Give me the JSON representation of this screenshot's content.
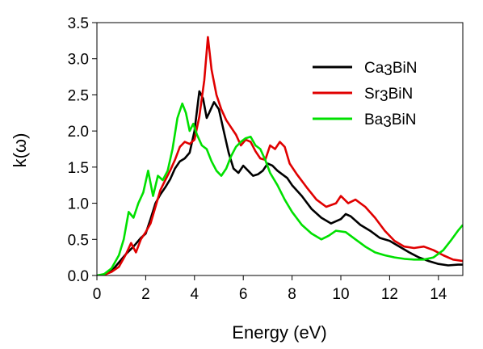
{
  "chart_data": {
    "type": "line",
    "title": "",
    "xlabel": "Energy (eV)",
    "ylabel": "k(ω)",
    "xlim": [
      0,
      15
    ],
    "ylim": [
      0,
      3.5
    ],
    "xticks": [
      0,
      2,
      4,
      6,
      8,
      10,
      12,
      14
    ],
    "yticks": [
      0.0,
      0.5,
      1.0,
      1.5,
      2.0,
      2.5,
      3.0,
      3.5
    ],
    "xtick_labels": [
      "0",
      "2",
      "4",
      "6",
      "8",
      "10",
      "12",
      "14"
    ],
    "ytick_labels": [
      "0.0",
      "0.5",
      "1.0",
      "1.5",
      "2.0",
      "2.5",
      "3.0",
      "3.5"
    ],
    "grid": false,
    "legend_position": "top-right",
    "series": [
      {
        "name": "Ca3BiN",
        "color": "#000000",
        "points": [
          [
            0,
            0
          ],
          [
            0.3,
            0.01
          ],
          [
            0.6,
            0.06
          ],
          [
            0.9,
            0.18
          ],
          [
            1.2,
            0.3
          ],
          [
            1.5,
            0.4
          ],
          [
            1.8,
            0.52
          ],
          [
            2.0,
            0.58
          ],
          [
            2.2,
            0.78
          ],
          [
            2.4,
            1.0
          ],
          [
            2.6,
            1.12
          ],
          [
            2.8,
            1.22
          ],
          [
            3.0,
            1.33
          ],
          [
            3.2,
            1.48
          ],
          [
            3.4,
            1.58
          ],
          [
            3.6,
            1.62
          ],
          [
            3.8,
            1.7
          ],
          [
            4.0,
            2.0
          ],
          [
            4.2,
            2.55
          ],
          [
            4.35,
            2.45
          ],
          [
            4.5,
            2.18
          ],
          [
            4.6,
            2.25
          ],
          [
            4.8,
            2.4
          ],
          [
            5.0,
            2.3
          ],
          [
            5.2,
            2.0
          ],
          [
            5.4,
            1.7
          ],
          [
            5.6,
            1.48
          ],
          [
            5.8,
            1.42
          ],
          [
            6.0,
            1.52
          ],
          [
            6.2,
            1.45
          ],
          [
            6.4,
            1.38
          ],
          [
            6.6,
            1.4
          ],
          [
            6.8,
            1.45
          ],
          [
            7.0,
            1.55
          ],
          [
            7.2,
            1.52
          ],
          [
            7.4,
            1.45
          ],
          [
            7.6,
            1.4
          ],
          [
            7.8,
            1.35
          ],
          [
            8.0,
            1.25
          ],
          [
            8.4,
            1.1
          ],
          [
            8.8,
            0.92
          ],
          [
            9.2,
            0.8
          ],
          [
            9.6,
            0.72
          ],
          [
            10.0,
            0.78
          ],
          [
            10.2,
            0.85
          ],
          [
            10.4,
            0.82
          ],
          [
            10.8,
            0.7
          ],
          [
            11.2,
            0.62
          ],
          [
            11.6,
            0.52
          ],
          [
            12.0,
            0.48
          ],
          [
            12.4,
            0.4
          ],
          [
            12.8,
            0.32
          ],
          [
            13.2,
            0.25
          ],
          [
            13.6,
            0.2
          ],
          [
            14.0,
            0.16
          ],
          [
            14.4,
            0.14
          ],
          [
            14.8,
            0.15
          ],
          [
            15.0,
            0.15
          ]
        ]
      },
      {
        "name": "Sr3BiN",
        "color": "#e00000",
        "points": [
          [
            0,
            0
          ],
          [
            0.3,
            0.01
          ],
          [
            0.6,
            0.05
          ],
          [
            0.9,
            0.12
          ],
          [
            1.2,
            0.3
          ],
          [
            1.4,
            0.45
          ],
          [
            1.6,
            0.32
          ],
          [
            1.8,
            0.5
          ],
          [
            2.0,
            0.6
          ],
          [
            2.2,
            0.72
          ],
          [
            2.4,
            0.95
          ],
          [
            2.6,
            1.18
          ],
          [
            2.8,
            1.32
          ],
          [
            3.0,
            1.45
          ],
          [
            3.2,
            1.6
          ],
          [
            3.4,
            1.78
          ],
          [
            3.6,
            1.85
          ],
          [
            3.8,
            1.82
          ],
          [
            4.0,
            1.88
          ],
          [
            4.2,
            2.2
          ],
          [
            4.4,
            2.7
          ],
          [
            4.55,
            3.3
          ],
          [
            4.7,
            2.85
          ],
          [
            4.9,
            2.5
          ],
          [
            5.1,
            2.3
          ],
          [
            5.3,
            2.15
          ],
          [
            5.5,
            2.05
          ],
          [
            5.7,
            1.95
          ],
          [
            5.9,
            1.8
          ],
          [
            6.1,
            1.88
          ],
          [
            6.3,
            1.85
          ],
          [
            6.5,
            1.72
          ],
          [
            6.7,
            1.62
          ],
          [
            6.9,
            1.6
          ],
          [
            7.1,
            1.8
          ],
          [
            7.3,
            1.75
          ],
          [
            7.5,
            1.85
          ],
          [
            7.7,
            1.78
          ],
          [
            7.9,
            1.55
          ],
          [
            8.2,
            1.4
          ],
          [
            8.6,
            1.22
          ],
          [
            9.0,
            1.05
          ],
          [
            9.4,
            0.95
          ],
          [
            9.8,
            1.0
          ],
          [
            10.0,
            1.1
          ],
          [
            10.3,
            1.0
          ],
          [
            10.6,
            1.05
          ],
          [
            11.0,
            0.95
          ],
          [
            11.4,
            0.8
          ],
          [
            11.8,
            0.62
          ],
          [
            12.2,
            0.48
          ],
          [
            12.6,
            0.4
          ],
          [
            13.0,
            0.38
          ],
          [
            13.4,
            0.4
          ],
          [
            13.8,
            0.35
          ],
          [
            14.2,
            0.28
          ],
          [
            14.6,
            0.22
          ],
          [
            15.0,
            0.2
          ]
        ]
      },
      {
        "name": "Ba3BiN",
        "color": "#00e000",
        "points": [
          [
            0,
            0
          ],
          [
            0.3,
            0.02
          ],
          [
            0.6,
            0.1
          ],
          [
            0.9,
            0.28
          ],
          [
            1.1,
            0.5
          ],
          [
            1.3,
            0.88
          ],
          [
            1.5,
            0.8
          ],
          [
            1.7,
            1.0
          ],
          [
            1.9,
            1.15
          ],
          [
            2.1,
            1.45
          ],
          [
            2.3,
            1.1
          ],
          [
            2.5,
            1.38
          ],
          [
            2.7,
            1.32
          ],
          [
            2.9,
            1.45
          ],
          [
            3.1,
            1.75
          ],
          [
            3.3,
            2.18
          ],
          [
            3.5,
            2.38
          ],
          [
            3.65,
            2.25
          ],
          [
            3.8,
            2.0
          ],
          [
            3.95,
            2.1
          ],
          [
            4.1,
            1.95
          ],
          [
            4.3,
            1.8
          ],
          [
            4.5,
            1.75
          ],
          [
            4.7,
            1.58
          ],
          [
            4.9,
            1.45
          ],
          [
            5.1,
            1.38
          ],
          [
            5.3,
            1.48
          ],
          [
            5.5,
            1.65
          ],
          [
            5.7,
            1.78
          ],
          [
            5.9,
            1.85
          ],
          [
            6.1,
            1.9
          ],
          [
            6.3,
            1.92
          ],
          [
            6.5,
            1.8
          ],
          [
            6.7,
            1.75
          ],
          [
            6.9,
            1.6
          ],
          [
            7.1,
            1.42
          ],
          [
            7.4,
            1.25
          ],
          [
            7.7,
            1.05
          ],
          [
            8.0,
            0.88
          ],
          [
            8.4,
            0.7
          ],
          [
            8.8,
            0.58
          ],
          [
            9.2,
            0.5
          ],
          [
            9.5,
            0.55
          ],
          [
            9.8,
            0.62
          ],
          [
            10.2,
            0.6
          ],
          [
            10.6,
            0.5
          ],
          [
            11.0,
            0.4
          ],
          [
            11.4,
            0.32
          ],
          [
            11.8,
            0.28
          ],
          [
            12.2,
            0.25
          ],
          [
            12.6,
            0.23
          ],
          [
            13.0,
            0.22
          ],
          [
            13.4,
            0.22
          ],
          [
            13.8,
            0.25
          ],
          [
            14.2,
            0.35
          ],
          [
            14.5,
            0.48
          ],
          [
            14.8,
            0.62
          ],
          [
            15.0,
            0.7
          ]
        ]
      }
    ]
  },
  "legend": {
    "items": [
      {
        "prefix": "Ca",
        "sub": "3",
        "suffix": "BiN",
        "color": "#000000"
      },
      {
        "prefix": "Sr",
        "sub": "3",
        "suffix": "BiN",
        "color": "#e00000"
      },
      {
        "prefix": "Ba",
        "sub": "3",
        "suffix": "BiN",
        "color": "#00e000"
      }
    ]
  }
}
